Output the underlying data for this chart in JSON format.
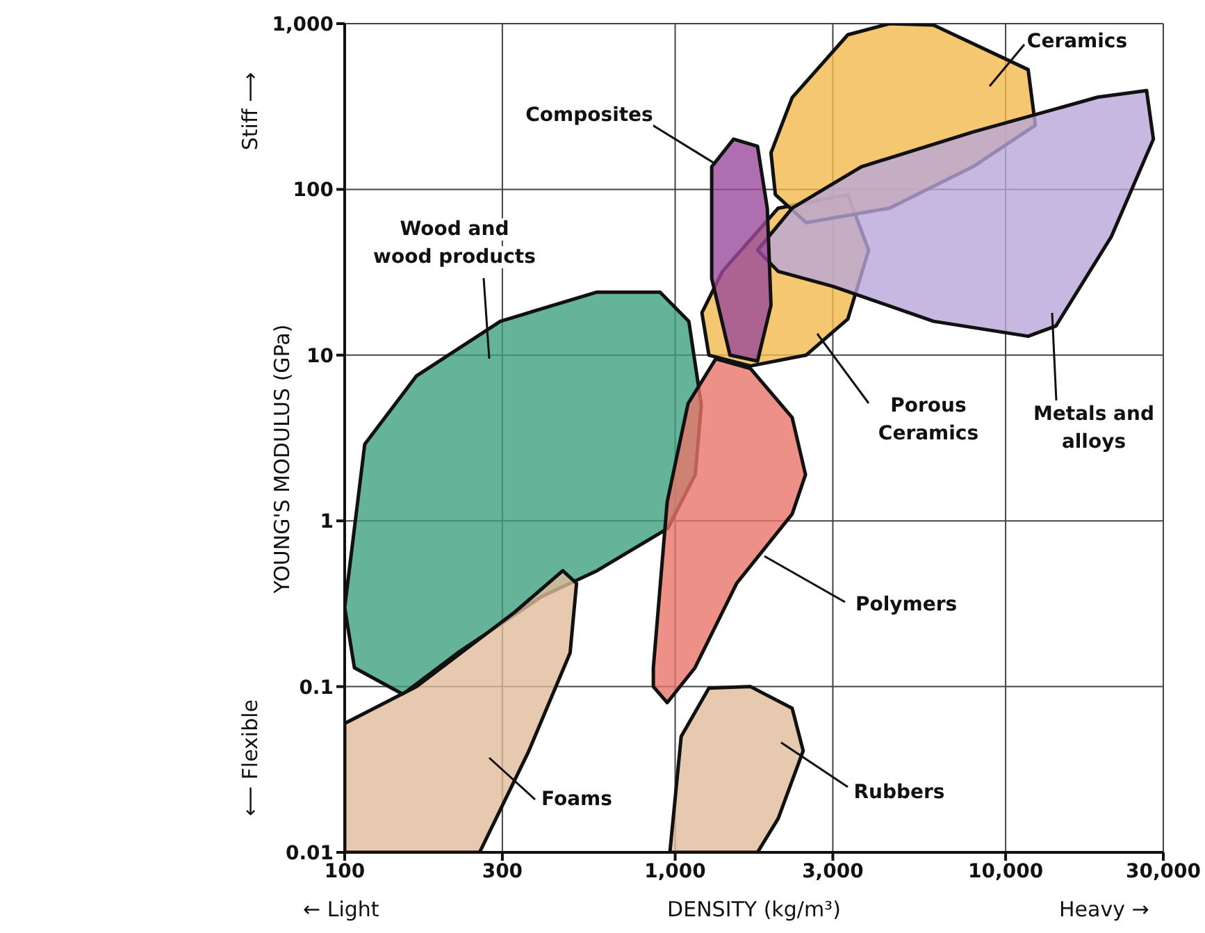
{
  "chart_data": {
    "type": "area",
    "xlabel": "DENSITY (kg/m³)",
    "ylabel": "YOUNG'S MODULUS (GPa)",
    "log": "xy",
    "grid": true,
    "marker": "none",
    "xlim": [
      100,
      30000
    ],
    "ylim": [
      0.01,
      1000
    ],
    "xticks": [
      100,
      300,
      {
        "value": 1000,
        "label": "1,000"
      },
      {
        "value": 3000,
        "label": "3,000"
      },
      {
        "value": 10000,
        "label": "10,000"
      },
      {
        "value": 30000,
        "label": "30,000"
      }
    ],
    "yticks": [
      0.01,
      0.1,
      1,
      10,
      100,
      {
        "value": 1000,
        "label": "1,000"
      }
    ],
    "series": [
      {
        "name": "Wood and wood products",
        "color": "#3fa07f",
        "x": [
          100,
          115,
          165,
          296,
          580,
          900,
          1100,
          1200,
          1150,
          950,
          580,
          395,
          220,
          150,
          107
        ],
        "values": [
          0.3,
          2.9,
          7.5,
          16,
          24,
          24,
          16,
          5,
          1.9,
          0.9,
          0.5,
          0.35,
          0.16,
          0.09,
          0.13
        ]
      },
      {
        "name": "Foams",
        "color": "#e0bc9a",
        "x": [
          100,
          165,
          326,
          457,
          503,
          481,
          359,
          256,
          100
        ],
        "values": [
          0.06,
          0.1,
          0.28,
          0.5,
          0.42,
          0.16,
          0.04,
          0.01,
          0.01
        ]
      },
      {
        "name": "Rubbers",
        "color": "#e0bc9a",
        "x": [
          964,
          1043,
          1265,
          1690,
          2260,
          2440,
          2050,
          1775
        ],
        "values": [
          0.01,
          0.05,
          0.098,
          0.1,
          0.074,
          0.041,
          0.016,
          0.01
        ]
      },
      {
        "name": "Polymers",
        "color": "#e8766a",
        "x": [
          859,
          946,
          1094,
          1327,
          1690,
          2260,
          2480,
          2260,
          1535,
          1148,
          946,
          859
        ],
        "values": [
          0.13,
          1.3,
          5.1,
          9.5,
          8.3,
          4.2,
          1.9,
          1.1,
          0.42,
          0.13,
          0.08,
          0.1
        ]
      },
      {
        "name": "Porous Ceramics",
        "color": "#f3b94e",
        "x": [
          1205,
          1390,
          2050,
          3330,
          3850,
          3330,
          2490,
          1690,
          1265
        ],
        "values": [
          18,
          32,
          77,
          93,
          43,
          16.5,
          10,
          8.6,
          10
        ]
      },
      {
        "name": "Ceramics",
        "color": "#f3b94e",
        "x": [
          1950,
          2260,
          3330,
          4450,
          6050,
          11700,
          12300,
          7960,
          4450,
          2490,
          2010
        ],
        "values": [
          166,
          358,
          857,
          1000,
          980,
          528,
          244,
          137,
          77,
          63,
          93
        ]
      },
      {
        "name": "Metals and alloys",
        "color": "#b9a6d9",
        "x": [
          1775,
          2260,
          3660,
          7960,
          19000,
          26700,
          28000,
          20900,
          14200,
          11700,
          6050,
          3000,
          2050
        ],
        "values": [
          43,
          77,
          137,
          222,
          360,
          395,
          201,
          52,
          15,
          13,
          16,
          26,
          32
        ]
      },
      {
        "name": "Composites",
        "color": "#9b4a9b",
        "x": [
          1290,
          1503,
          1775,
          1900,
          1950,
          1775,
          1465,
          1290
        ],
        "values": [
          137,
          201,
          182,
          77,
          20,
          9.2,
          10,
          29
        ]
      }
    ],
    "annotations": [
      "← Light",
      "Heavy →",
      "Stiff ⟶",
      "⟵ Flexible"
    ]
  }
}
